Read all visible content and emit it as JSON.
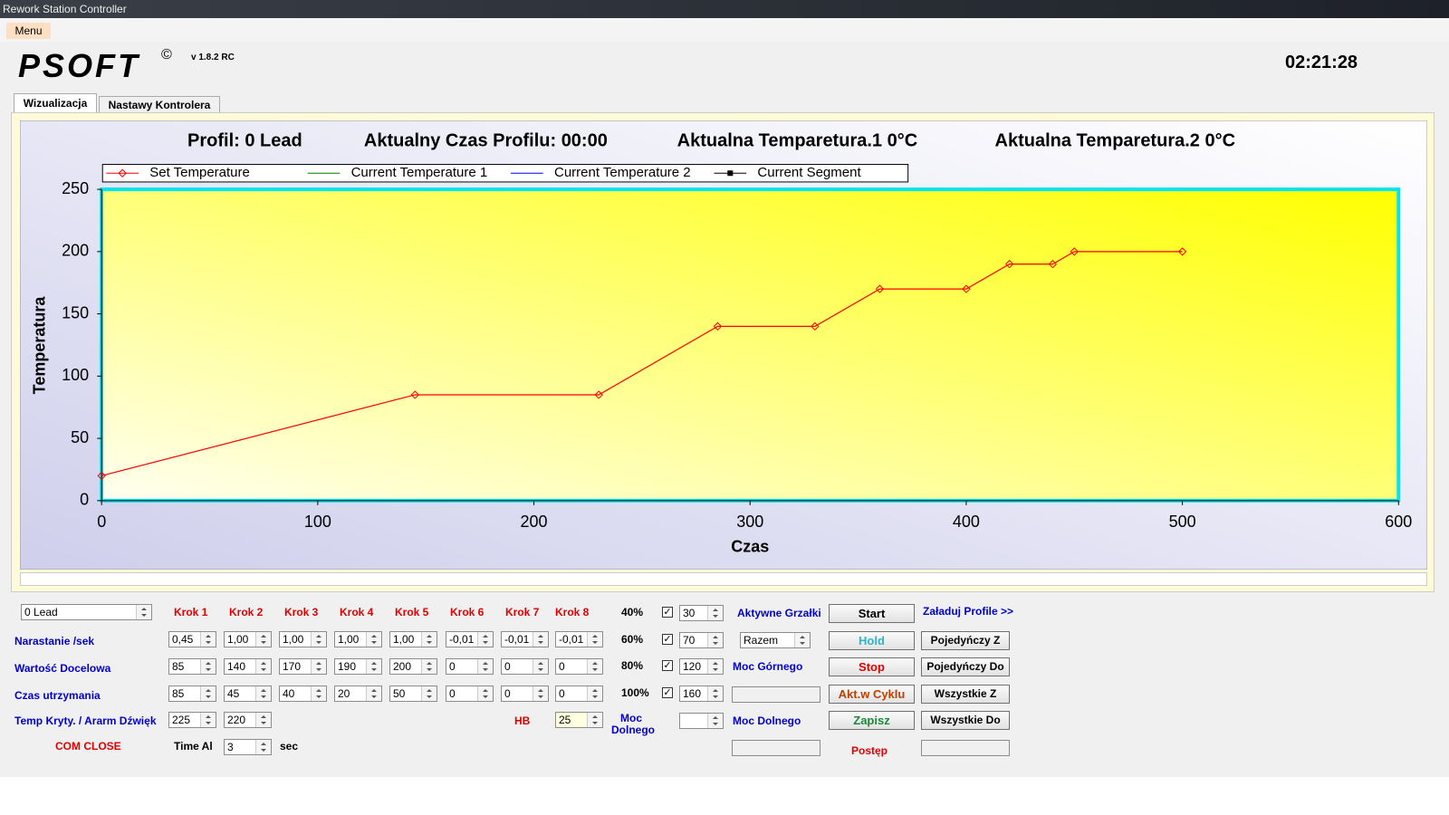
{
  "window_title": "Rework Station Controller",
  "menu": [
    "Menu"
  ],
  "logo": {
    "name": "PSOFT",
    "mark": "©",
    "version": "v 1.8.2 RC"
  },
  "clock": "02:21:28",
  "tabs": [
    "Wizualizacja",
    "Nastawy Kontrolera"
  ],
  "chart_data": {
    "type": "line",
    "titles": [
      "Profil: 0 Lead",
      "Aktualny Czas Profilu: 00:00",
      "Aktualna Temparetura.1  0°C",
      "Aktualna Temparetura.2  0°C"
    ],
    "x_label": "Czas",
    "y_label": "Temperatura",
    "series": [
      {
        "name": "Set Temperature",
        "color": "#ff0000",
        "marker": "diamond",
        "x": [
          0,
          145,
          230,
          285,
          330,
          360,
          400,
          420,
          440,
          450,
          500
        ],
        "values": [
          20,
          85,
          85,
          140,
          140,
          170,
          170,
          190,
          190,
          200,
          200
        ]
      },
      {
        "name": "Current Temperature 1",
        "color": "#008000",
        "x": [],
        "values": []
      },
      {
        "name": "Current Temperature 2",
        "color": "#0000ff",
        "x": [],
        "values": []
      },
      {
        "name": "Current Segment",
        "color": "#000000",
        "marker": "square",
        "x": [],
        "values": []
      }
    ],
    "xlim": [
      0,
      600
    ],
    "xticks": [
      0,
      100,
      200,
      300,
      400,
      500,
      600
    ],
    "ylim": [
      0,
      250
    ],
    "yticks": [
      0,
      50,
      100,
      150,
      200,
      250
    ],
    "grid": false,
    "legend": "top"
  },
  "profile": "0 Lead",
  "steps": {
    "headers": [
      "Krok 1",
      "Krok 2",
      "Krok 3",
      "Krok 4",
      "Krok 5",
      "Krok 6",
      "Krok 7",
      "Krok 8"
    ],
    "rows": [
      {
        "label": "Narastanie /sek",
        "values": [
          "0,45",
          "1,00",
          "1,00",
          "1,00",
          "1,00",
          "-0,01",
          "-0,01",
          "-0,01"
        ]
      },
      {
        "label": "Wartość Docelowa",
        "values": [
          "85",
          "140",
          "170",
          "190",
          "200",
          "0",
          "0",
          "0"
        ]
      },
      {
        "label": "Czas utrzymania",
        "values": [
          "85",
          "45",
          "40",
          "20",
          "50",
          "0",
          "0",
          "0"
        ]
      }
    ]
  },
  "alarm": {
    "label": "Temp Kryty. / Ararm Dźwięk",
    "values": [
      "225",
      "220"
    ]
  },
  "com_status": "COM CLOSE",
  "timeout": {
    "label": "Time Al",
    "value": "3",
    "unit": "sec"
  },
  "hb": {
    "label": "HB",
    "value": "25"
  },
  "moc_dolnego_short": [
    "Moc",
    "Dolnego"
  ],
  "power_levels": [
    {
      "percent": "40%",
      "value": "30"
    },
    {
      "percent": "60%",
      "value": "70"
    },
    {
      "percent": "80%",
      "value": "120"
    },
    {
      "percent": "100%",
      "value": "160"
    }
  ],
  "heaters": {
    "label": "Aktywne Grzałki",
    "mode": "Razem"
  },
  "moc_gornego": "Moc Górnego",
  "moc_dolnego": "Moc Dolnego",
  "buttons": [
    "Start",
    "Hold",
    "Stop",
    "Akt.w Cyklu",
    "Zapisz"
  ],
  "progress_label": "Postęp",
  "profiles": {
    "label": "Załaduj Profile >>",
    "buttons": [
      "Pojedyńczy Z",
      "Pojedyńczy Do",
      "Wszystkie Z",
      "Wszystkie Do"
    ]
  }
}
